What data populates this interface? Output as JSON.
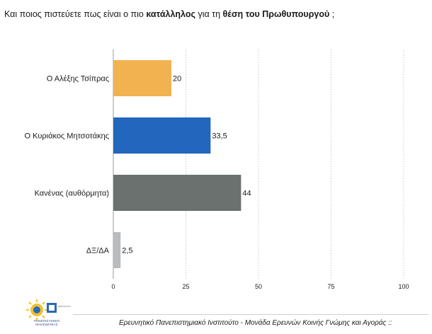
{
  "question": {
    "part1": "Και ποιος πιστεύετε πως είναι ο πιο ",
    "bold1": "κατάλληλος",
    "part2": " για τη ",
    "bold2": "θέση του Πρωθυπουργού",
    "part3": " ;"
  },
  "chart_data": {
    "type": "bar",
    "orientation": "horizontal",
    "categories": [
      "Ο Αλέξης Τσίπρας",
      "Ο Κυριάκος Μητσοτάκης",
      "Κανένας (αυθόρμητα)",
      "ΔΞ/ΔΑ"
    ],
    "values": [
      20,
      33.5,
      44,
      2.5
    ],
    "value_labels": [
      "20",
      "33,5",
      "44",
      "2,5"
    ],
    "colors": [
      "#f2b24f",
      "#2266bd",
      "#6b716f",
      "#b9bcbe"
    ],
    "xlim": [
      0,
      100
    ],
    "ticks": [
      0,
      25,
      50,
      75,
      100
    ],
    "grid": true,
    "title": "",
    "xlabel": "",
    "ylabel": ""
  },
  "footer": {
    "text": "Ερευνητικό Πανεπιστημιακό Ινστιτούτο - Μονάδα Ερευνών Κοινής Γνώμης και Αγοράς ::",
    "logo_text_1": "ΠΑΝΕΠΙΣΤΗΜΙΟ",
    "logo_text_2": "ΜΑΚΕΔΟΝΙΑΣ"
  }
}
